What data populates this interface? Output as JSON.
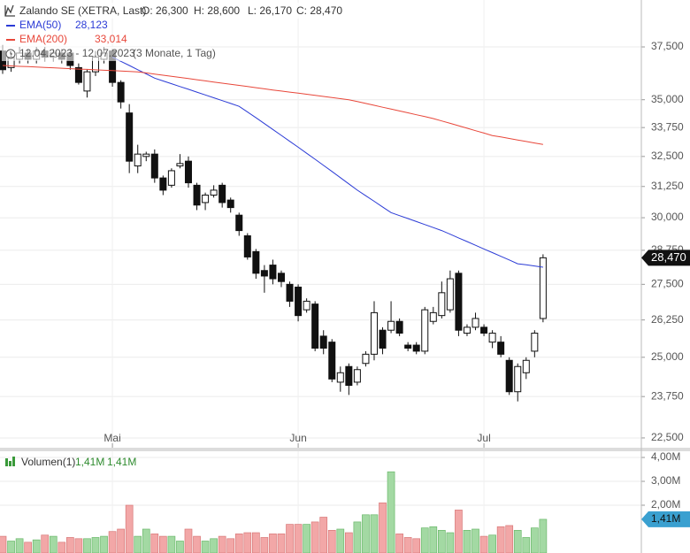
{
  "chart_data": {
    "type": "candlestick",
    "title": "Zalando SE (XETRA, Last)",
    "ohlc_labels": [
      "O: 26,300",
      "H: 28,600",
      "L: 26,170",
      "C: 28,470"
    ],
    "period": "12.04.2023 - 12.07.2023",
    "period_note": "(3 Monate, 1 Tag)",
    "last_label": "28,470",
    "log_scale": true,
    "grid": true,
    "categories": [
      null,
      null,
      null,
      null,
      null,
      null,
      null,
      null,
      null,
      null,
      null,
      null,
      null,
      "Mai",
      null,
      null,
      null,
      null,
      null,
      null,
      null,
      null,
      null,
      null,
      null,
      null,
      null,
      null,
      null,
      null,
      null,
      null,
      null,
      null,
      null,
      "Jun",
      null,
      null,
      null,
      null,
      null,
      null,
      null,
      null,
      null,
      null,
      null,
      null,
      null,
      null,
      null,
      null,
      null,
      null,
      null,
      null,
      null,
      "Jul",
      null,
      null,
      null,
      null,
      null,
      null,
      null
    ],
    "open": [
      37300,
      36500,
      36900,
      37200,
      36900,
      37300,
      37000,
      37200,
      37200,
      36500,
      35400,
      36300,
      36900,
      37300,
      35800,
      34400,
      32100,
      32500,
      32600,
      31600,
      31300,
      32100,
      32300,
      31300,
      30600,
      30900,
      31300,
      30700,
      30100,
      29300,
      28700,
      28000,
      28200,
      27900,
      27500,
      27400,
      26600,
      26800,
      25700,
      25500,
      24200,
      24700,
      24200,
      24800,
      25100,
      25900,
      25900,
      26200,
      25400,
      25400,
      25200,
      26200,
      26400,
      26600,
      27900,
      25800,
      26000,
      26000,
      25500,
      25500,
      24900,
      23900,
      24500,
      25200,
      26300
    ],
    "high": [
      37600,
      37200,
      37500,
      37400,
      37500,
      37500,
      37400,
      37400,
      37400,
      36700,
      36400,
      37300,
      37500,
      37400,
      35900,
      34800,
      33000,
      32700,
      32800,
      31700,
      32000,
      32600,
      32500,
      31400,
      31000,
      31300,
      31400,
      30800,
      30200,
      29400,
      28800,
      28200,
      28400,
      28000,
      27600,
      27500,
      27000,
      26900,
      25900,
      25600,
      24700,
      24800,
      24700,
      25200,
      26900,
      26000,
      26900,
      26300,
      25500,
      25500,
      26700,
      26700,
      27600,
      28000,
      28000,
      26100,
      26500,
      26100,
      25900,
      25700,
      25000,
      24800,
      25000,
      25900,
      28600
    ],
    "low": [
      36200,
      36300,
      36700,
      36700,
      36700,
      36800,
      36800,
      36700,
      36400,
      35700,
      35100,
      36100,
      36700,
      35600,
      34600,
      31800,
      31800,
      32300,
      31400,
      30900,
      31200,
      32000,
      31200,
      30300,
      30300,
      30800,
      30400,
      30200,
      29300,
      28400,
      27700,
      27200,
      27500,
      27400,
      26700,
      26200,
      26500,
      25200,
      25100,
      24200,
      23900,
      23800,
      24100,
      24700,
      24900,
      25100,
      25800,
      25700,
      25200,
      25100,
      25100,
      26100,
      26300,
      26500,
      25700,
      25700,
      25900,
      25700,
      25300,
      25000,
      23800,
      23600,
      24300,
      25000,
      26170
    ],
    "close": [
      36400,
      37000,
      37200,
      36900,
      37300,
      37000,
      37200,
      36900,
      36600,
      35800,
      36300,
      37000,
      37200,
      35800,
      34900,
      32300,
      32600,
      32600,
      31600,
      31100,
      31900,
      32200,
      31400,
      30500,
      30900,
      31100,
      30600,
      30400,
      29500,
      28500,
      27900,
      27800,
      27700,
      27600,
      26900,
      26400,
      26900,
      25300,
      25300,
      24300,
      24500,
      24100,
      24600,
      25100,
      26500,
      25300,
      26200,
      25800,
      25300,
      25200,
      26600,
      26500,
      27200,
      27700,
      25900,
      26000,
      26300,
      25800,
      25800,
      25100,
      23900,
      24700,
      24900,
      25800,
      28470
    ],
    "series": [
      {
        "name": "EMA(50)",
        "last_label": "28,123",
        "color": "#2b3bd6",
        "values": [
          null,
          null,
          null,
          null,
          null,
          null,
          null,
          null,
          null,
          null,
          null,
          null,
          null,
          37000,
          36800,
          36600,
          36400,
          36200,
          36000,
          35870,
          35740,
          35610,
          35480,
          35350,
          35220,
          35090,
          34960,
          34830,
          34700,
          34442,
          34183,
          33925,
          33667,
          33408,
          33150,
          32894,
          32638,
          32381,
          32125,
          31869,
          31613,
          31356,
          31100,
          30875,
          30650,
          30425,
          30200,
          30083,
          29967,
          29850,
          29733,
          29617,
          29500,
          29360,
          29220,
          29080,
          28940,
          28800,
          28663,
          28525,
          28388,
          28250,
          28208,
          28166,
          28123
        ]
      },
      {
        "name": "EMA(200)",
        "last_label": "33,014",
        "color": "#e8473a",
        "values": [
          36600,
          36580,
          36560,
          36545,
          36525,
          36505,
          36490,
          36470,
          36450,
          36430,
          36415,
          36395,
          36375,
          36355,
          36340,
          36320,
          36300,
          36247,
          36193,
          36140,
          36087,
          36033,
          35980,
          35927,
          35873,
          35820,
          35767,
          35713,
          35660,
          35607,
          35553,
          35500,
          35450,
          35400,
          35350,
          35300,
          35250,
          35200,
          35150,
          35100,
          35050,
          35000,
          34915,
          34830,
          34745,
          34660,
          34575,
          34490,
          34405,
          34320,
          34235,
          34150,
          34043,
          33936,
          33829,
          33721,
          33614,
          33507,
          33400,
          33336,
          33271,
          33207,
          33143,
          33078,
          33014
        ]
      }
    ],
    "ylim": [
      22240,
      39870
    ],
    "yticks": [
      {
        "value": 22500,
        "label": "22,500"
      },
      {
        "value": 23750,
        "label": "23,750"
      },
      {
        "value": 25000,
        "label": "25,000"
      },
      {
        "value": 26250,
        "label": "26,250"
      },
      {
        "value": 27500,
        "label": "27,500"
      },
      {
        "value": 28750,
        "label": "28,750"
      },
      {
        "value": 30000,
        "label": "30,000"
      },
      {
        "value": 31250,
        "label": "31,250"
      },
      {
        "value": 32500,
        "label": "32,500"
      },
      {
        "value": 33750,
        "label": "33,750"
      },
      {
        "value": 35000,
        "label": "35,000"
      },
      {
        "value": 37500,
        "label": "37,500"
      }
    ],
    "volume": {
      "name": "Volumen(1)",
      "legend_labels": [
        "1,41M",
        "1,41M"
      ],
      "last_label": "1,41M",
      "up_color": "#a3d9a3",
      "down_color": "#f2a7a7",
      "values": [
        700000,
        500000,
        600000,
        450000,
        550000,
        750000,
        700000,
        450000,
        650000,
        600000,
        600000,
        650000,
        700000,
        900000,
        1000000,
        2000000,
        700000,
        1000000,
        800000,
        700000,
        700000,
        500000,
        1000000,
        700000,
        500000,
        600000,
        700000,
        600000,
        800000,
        850000,
        850000,
        650000,
        800000,
        800000,
        1200000,
        1200000,
        1200000,
        1300000,
        1500000,
        950000,
        1000000,
        850000,
        1300000,
        1600000,
        1600000,
        2100000,
        3400000,
        800000,
        650000,
        600000,
        1050000,
        1100000,
        950000,
        850000,
        1800000,
        950000,
        1000000,
        700000,
        750000,
        1100000,
        1150000,
        950000,
        650000,
        1050000,
        1410000
      ],
      "ylim": [
        0,
        4260000
      ],
      "yticks": [
        {
          "value": 2000000,
          "label": "2,00M"
        },
        {
          "value": 3000000,
          "label": "3,00M"
        },
        {
          "value": 4000000,
          "label": "4,00M"
        }
      ]
    }
  }
}
